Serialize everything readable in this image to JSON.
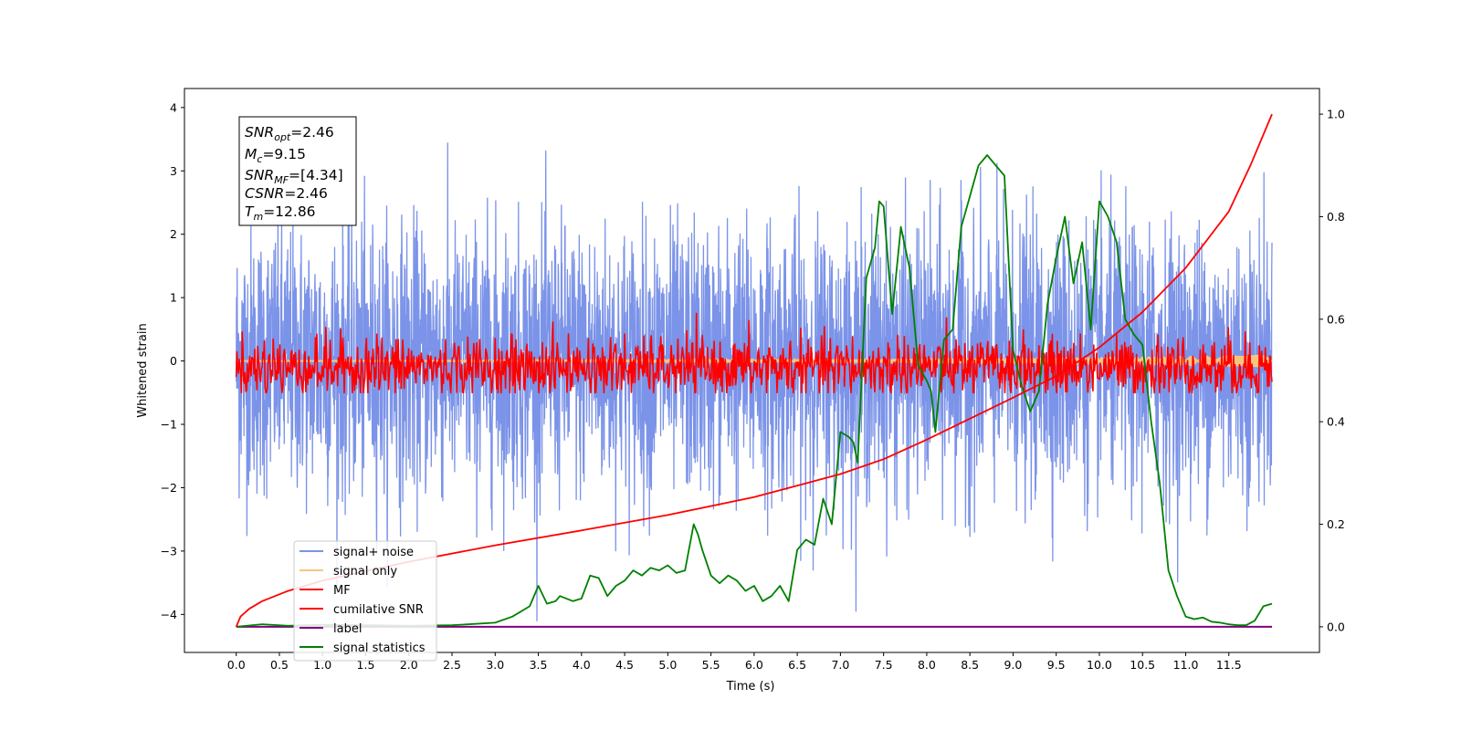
{
  "chart_data": {
    "type": "line",
    "xlabel": "Time (s)",
    "ylabel": "Whitened strain",
    "xlim": [
      -0.6,
      12.55
    ],
    "ylim": [
      -4.6,
      4.3
    ],
    "ylim_right": [
      -0.05,
      1.05
    ],
    "x_ticks": [
      "0.0",
      "0.5",
      "1.0",
      "1.5",
      "2.0",
      "2.5",
      "3.0",
      "3.5",
      "4.0",
      "4.5",
      "5.0",
      "5.5",
      "6.0",
      "6.5",
      "7.0",
      "7.5",
      "8.0",
      "8.5",
      "9.0",
      "9.5",
      "10.0",
      "10.5",
      "11.0",
      "11.5"
    ],
    "y_ticks": [
      "4",
      "3",
      "2",
      "1",
      "0",
      "−1",
      "−2",
      "−3",
      "−4"
    ],
    "y_right_ticks": [
      "1.0",
      "0.8",
      "0.6",
      "0.4",
      "0.2",
      "0.0"
    ],
    "legend_position": "lower-left",
    "legend": [
      {
        "label": "signal+ noise",
        "color": "#7b93e8"
      },
      {
        "label": "signal only",
        "color": "#f5c77e"
      },
      {
        "label": "MF",
        "color": "#ff0000"
      },
      {
        "label": "cumilative SNR",
        "color": "#ff0000"
      },
      {
        "label": "label",
        "color": "#800080"
      },
      {
        "label": "signal statistics",
        "color": "#008000"
      }
    ],
    "info_box": [
      "=2.46",
      "=9.15",
      "=[4.34]",
      "=2.46",
      "=12.86"
    ],
    "info_vars": [
      {
        "base": "SNR",
        "sub": "opt"
      },
      {
        "base": "M",
        "sub": "c"
      },
      {
        "base": "SNR",
        "sub": "MF"
      },
      {
        "base": "CSNR",
        "sub": ""
      },
      {
        "base": "T",
        "sub": "m"
      }
    ],
    "series": [
      {
        "label": "signal statistics",
        "axis": "right",
        "x": [
          0.0,
          0.3,
          0.6,
          1.0,
          1.5,
          2.0,
          2.5,
          3.0,
          3.2,
          3.4,
          3.5,
          3.6,
          3.7,
          3.75,
          3.9,
          4.0,
          4.1,
          4.2,
          4.3,
          4.4,
          4.5,
          4.6,
          4.7,
          4.8,
          4.9,
          5.0,
          5.1,
          5.2,
          5.3,
          5.35,
          5.4,
          5.5,
          5.6,
          5.7,
          5.8,
          5.9,
          6.0,
          6.1,
          6.2,
          6.3,
          6.4,
          6.5,
          6.6,
          6.7,
          6.8,
          6.9,
          7.0,
          7.1,
          7.15,
          7.2,
          7.3,
          7.4,
          7.45,
          7.5,
          7.6,
          7.7,
          7.8,
          7.9,
          8.0,
          8.05,
          8.1,
          8.2,
          8.3,
          8.4,
          8.5,
          8.6,
          8.7,
          8.8,
          8.9,
          9.0,
          9.1,
          9.2,
          9.3,
          9.4,
          9.5,
          9.6,
          9.7,
          9.8,
          9.9,
          10.0,
          10.1,
          10.2,
          10.3,
          10.4,
          10.5,
          10.6,
          10.7,
          10.8,
          10.9,
          11.0,
          11.1,
          11.2,
          11.3,
          11.4,
          11.5,
          11.6,
          11.7,
          11.8,
          11.9,
          12.0
        ],
        "y": [
          0.0,
          0.005,
          0.002,
          0.004,
          0.003,
          0.002,
          0.003,
          0.008,
          0.02,
          0.04,
          0.08,
          0.045,
          0.05,
          0.06,
          0.05,
          0.055,
          0.1,
          0.095,
          0.06,
          0.08,
          0.09,
          0.11,
          0.1,
          0.115,
          0.11,
          0.12,
          0.105,
          0.11,
          0.2,
          0.18,
          0.15,
          0.1,
          0.085,
          0.1,
          0.09,
          0.07,
          0.08,
          0.05,
          0.06,
          0.08,
          0.05,
          0.15,
          0.17,
          0.16,
          0.25,
          0.2,
          0.38,
          0.37,
          0.36,
          0.32,
          0.68,
          0.74,
          0.83,
          0.82,
          0.61,
          0.78,
          0.7,
          0.51,
          0.48,
          0.46,
          0.38,
          0.56,
          0.58,
          0.78,
          0.84,
          0.9,
          0.92,
          0.9,
          0.88,
          0.54,
          0.47,
          0.42,
          0.46,
          0.63,
          0.72,
          0.8,
          0.67,
          0.75,
          0.58,
          0.83,
          0.8,
          0.75,
          0.6,
          0.57,
          0.55,
          0.4,
          0.28,
          0.11,
          0.06,
          0.02,
          0.015,
          0.018,
          0.01,
          0.008,
          0.005,
          0.003,
          0.003,
          0.012,
          0.04,
          0.045
        ]
      },
      {
        "label": "cumilative SNR",
        "axis": "right",
        "x": [
          0.0,
          0.05,
          0.15,
          0.3,
          0.6,
          1.0,
          2.0,
          3.0,
          4.0,
          5.0,
          6.0,
          7.0,
          7.5,
          8.0,
          8.5,
          9.0,
          9.5,
          10.0,
          10.5,
          11.0,
          11.5,
          11.75,
          12.0
        ],
        "y": [
          0.0,
          0.02,
          0.035,
          0.05,
          0.07,
          0.09,
          0.127,
          0.159,
          0.188,
          0.218,
          0.253,
          0.298,
          0.327,
          0.365,
          0.406,
          0.447,
          0.489,
          0.545,
          0.614,
          0.7,
          0.81,
          0.9,
          1.0
        ]
      },
      {
        "label": "label",
        "axis": "right",
        "x": [
          0.0,
          12.0
        ],
        "y": [
          0.0,
          0.0
        ]
      }
    ]
  }
}
